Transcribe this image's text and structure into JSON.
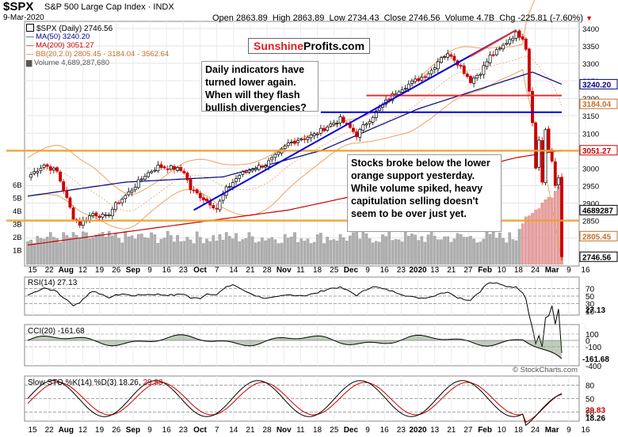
{
  "header": {
    "symbol": "$SPX",
    "name": "S&P 500 Large Cap Index",
    "exchange": "INDX",
    "date": "9-Mar-2020",
    "open_label": "Open",
    "open": "2863.89",
    "high_label": "High",
    "high": "2863.89",
    "low_label": "Low",
    "low": "2734.43",
    "close_label": "Close",
    "close": "2746.56",
    "volume_label": "Volume",
    "volume": "4.7B",
    "chg_label": "Chg",
    "chg": "-225.81 (-7.60%)",
    "chg_icon": "down-triangle-icon"
  },
  "legend": {
    "main": "$SPX (Daily) 2746.56",
    "ma50": "MA(50) 3240.20",
    "ma200": "MA(200) 3051.27",
    "bb": "BB(20,2.0) 2805.45 - 3184.04 - 3562.64",
    "volume": "Volume 4,689,287,680"
  },
  "brand": {
    "part1": "Sunshine",
    "part2": "Profits.com"
  },
  "annotations": {
    "note1": "Daily indicators have turned lower again. When will they flash bullish divergencies?",
    "note2": "Stocks broke below the lower orange support yesterday. While volume spiked, heavy capitulation selling doesn't seem to be over just yet."
  },
  "colors": {
    "price_up": "#000000",
    "price_down": "#cc0000",
    "ma50": "#000080",
    "ma200": "#cc0000",
    "bb": "#f0a060",
    "support": "#f0a030",
    "trend": "#0000dd",
    "resistance": "#e03030",
    "volume": "#b0b0b0",
    "volume_red": "#e8a0a0",
    "cci_pos": "#4a7040",
    "cci_neg": "#8a4040"
  },
  "price_axis": {
    "ticks": [
      "3400",
      "3350",
      "3300",
      "3250",
      "3200",
      "3150",
      "3100",
      "3050",
      "3000",
      "2950",
      "2900",
      "2850",
      "2800"
    ],
    "tags": [
      {
        "text": "3240.20",
        "value": 3240.2,
        "color": "#000080"
      },
      {
        "text": "3184.04",
        "value": 3184.04,
        "color": "#c07030"
      },
      {
        "text": "3051.27",
        "value": 3051.27,
        "color": "#cc0000"
      },
      {
        "text": "4689287",
        "value": 2880,
        "color": "#000000"
      },
      {
        "text": "2805.45",
        "value": 2805.45,
        "color": "#c07030"
      },
      {
        "text": "2746.56",
        "value": 2746.56,
        "color": "#000000"
      }
    ],
    "volume_ticks": [
      "6B",
      "5B",
      "4B",
      "3B",
      "2B",
      "1B"
    ]
  },
  "time_axis": [
    "15",
    "22",
    "Aug",
    "12",
    "19",
    "26",
    "Sep",
    "9",
    "16",
    "23",
    "Oct",
    "7",
    "14",
    "21",
    "28",
    "Nov",
    "11",
    "18",
    "25",
    "Dec",
    "9",
    "16",
    "23",
    "2020",
    "13",
    "21",
    "27",
    "Feb",
    "10",
    "18",
    "24",
    "Mar",
    "9",
    "16"
  ],
  "rsi": {
    "label": "RSI(14) 27.13",
    "ticks": [
      "70",
      "50",
      "30",
      "10"
    ],
    "tag": "27.13"
  },
  "cci": {
    "label": "CCI(20) -161.68",
    "ticks": [
      "100",
      "0",
      "-100",
      "-400"
    ],
    "tag": "-161.68"
  },
  "sto": {
    "label_prefix": "Slow STO %K(14) %D(3) 18.26,",
    "d_value": "29.83",
    "ticks": [
      "80",
      "50",
      "20"
    ],
    "tag_k": "18.26",
    "tag_d": "29.83"
  },
  "watermark": "© StockCharts.com",
  "chart_data": {
    "type": "line",
    "title": "$SPX S&P 500 Large Cap Index - Daily",
    "ylim": [
      2720,
      3420
    ],
    "anchors": [
      [
        0,
        2975
      ],
      [
        5,
        3010
      ],
      [
        9,
        2990
      ],
      [
        14,
        2860
      ],
      [
        16,
        2840
      ],
      [
        20,
        2870
      ],
      [
        24,
        2860
      ],
      [
        27,
        2895
      ],
      [
        31,
        2930
      ],
      [
        36,
        2980
      ],
      [
        40,
        3005
      ],
      [
        45,
        3000
      ],
      [
        48,
        2990
      ],
      [
        50,
        2940
      ],
      [
        53,
        2920
      ],
      [
        56,
        2900
      ],
      [
        58,
        2885
      ],
      [
        61,
        2940
      ],
      [
        65,
        2980
      ],
      [
        69,
        3000
      ],
      [
        73,
        3010
      ],
      [
        77,
        3040
      ],
      [
        80,
        3070
      ],
      [
        84,
        3085
      ],
      [
        88,
        3095
      ],
      [
        92,
        3120
      ],
      [
        96,
        3140
      ],
      [
        99,
        3115
      ],
      [
        101,
        3095
      ],
      [
        104,
        3130
      ],
      [
        108,
        3170
      ],
      [
        111,
        3200
      ],
      [
        114,
        3225
      ],
      [
        118,
        3245
      ],
      [
        121,
        3260
      ],
      [
        124,
        3280
      ],
      [
        127,
        3320
      ],
      [
        130,
        3325
      ],
      [
        133,
        3290
      ],
      [
        136,
        3250
      ],
      [
        139,
        3275
      ],
      [
        142,
        3320
      ],
      [
        145,
        3340
      ],
      [
        148,
        3370
      ],
      [
        150,
        3385
      ],
      [
        152,
        3375
      ],
      [
        153,
        3340
      ],
      [
        154,
        3220
      ],
      [
        155,
        3130
      ],
      [
        156,
        3000
      ],
      [
        157,
        3080
      ],
      [
        158,
        2960
      ],
      [
        159,
        3110
      ],
      [
        160,
        3050
      ],
      [
        161,
        3020
      ],
      [
        162,
        2950
      ],
      [
        163,
        2972
      ],
      [
        164,
        2746
      ]
    ],
    "ma50_anchors": [
      [
        0,
        2920
      ],
      [
        30,
        2960
      ],
      [
        60,
        2975
      ],
      [
        90,
        3050
      ],
      [
        120,
        3170
      ],
      [
        145,
        3245
      ],
      [
        155,
        3275
      ],
      [
        164,
        3240
      ]
    ],
    "ma200_anchors": [
      [
        0,
        2780
      ],
      [
        40,
        2830
      ],
      [
        80,
        2880
      ],
      [
        120,
        2960
      ],
      [
        150,
        3030
      ],
      [
        164,
        3051
      ]
    ],
    "support_lines": [
      3050,
      2850
    ],
    "resistance_lines": [
      {
        "value": 3208,
        "from": 104,
        "to": 164
      },
      {
        "value": 3160,
        "from": 90,
        "to": 164
      }
    ],
    "trendlines": [
      {
        "from": [
          51,
          2880
        ],
        "to": [
          150,
          3395
        ],
        "color": "trend"
      },
      {
        "from": [
          136,
          3320
        ],
        "to": [
          150,
          3395
        ],
        "color": "resistance"
      }
    ]
  }
}
